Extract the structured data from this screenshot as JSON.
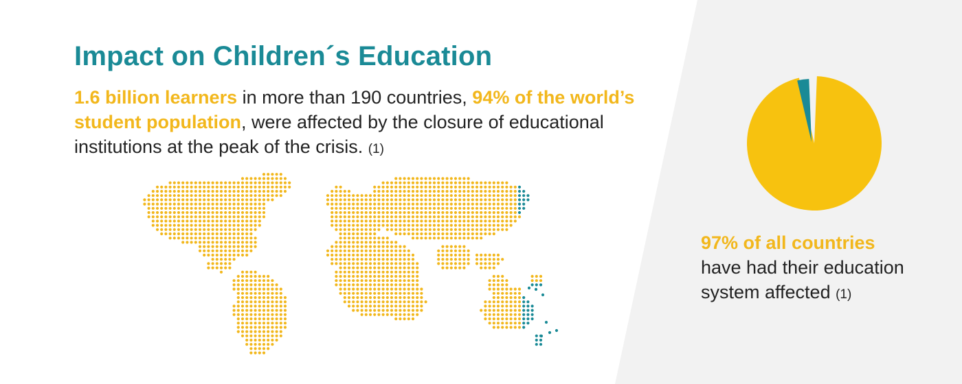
{
  "colors": {
    "accent_teal": "#1a8a96",
    "accent_yellow": "#f2b71c",
    "pie_yellow": "#f7c20f",
    "text": "#222222",
    "panel_bg": "#f2f2f2"
  },
  "header": {
    "title": "Impact on Children´s Education"
  },
  "lead": {
    "highlight1": "1.6 billion learners",
    "text1": " in more than 190 countries, ",
    "highlight2": "94% of the world’s student population",
    "text2": ", were affected by the closure of educational institutions at the peak of the crisis. ",
    "ref": "(1)"
  },
  "map": {
    "icon": "world-dot-map",
    "highlighted_regions": [
      "north-east Asia",
      "eastern Australia / Pacific"
    ]
  },
  "stat": {
    "highlight": "97% of all countries",
    "line2": "have had their education",
    "line3": "system affected ",
    "ref": "(1)"
  },
  "chart_data": {
    "type": "pie",
    "title": "",
    "slices": [
      {
        "value": 97,
        "color": "#f7c20f"
      },
      {
        "value": 3,
        "color": "#1a8a96"
      }
    ]
  }
}
